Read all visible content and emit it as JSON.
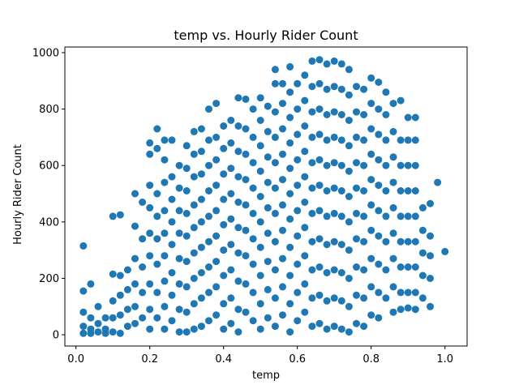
{
  "chart_data": {
    "type": "scatter",
    "title": "temp vs. Hourly Rider Count",
    "xlabel": "temp",
    "ylabel": "Hourly Rider Count",
    "xlim": [
      -0.03,
      1.06
    ],
    "ylim": [
      -40,
      1020
    ],
    "x_ticks": [
      0.0,
      0.2,
      0.4,
      0.6,
      0.8,
      1.0
    ],
    "x_tick_labels": [
      "0.0",
      "0.2",
      "0.4",
      "0.6",
      "0.8",
      "1.0"
    ],
    "y_ticks": [
      0,
      200,
      400,
      600,
      800,
      1000
    ],
    "y_tick_labels": [
      "0",
      "200",
      "400",
      "600",
      "800",
      "1000"
    ],
    "grid": false,
    "marker_color": "#1f77b4",
    "points_approx_note_free": true,
    "points": [
      [
        0.02,
        315
      ],
      [
        0.02,
        155
      ],
      [
        0.02,
        80
      ],
      [
        0.02,
        30
      ],
      [
        0.02,
        5
      ],
      [
        0.04,
        180
      ],
      [
        0.04,
        60
      ],
      [
        0.04,
        20
      ],
      [
        0.04,
        5
      ],
      [
        0.06,
        100
      ],
      [
        0.06,
        40
      ],
      [
        0.06,
        10
      ],
      [
        0.08,
        60
      ],
      [
        0.08,
        20
      ],
      [
        0.08,
        5
      ],
      [
        0.1,
        420
      ],
      [
        0.1,
        215
      ],
      [
        0.1,
        120
      ],
      [
        0.1,
        60
      ],
      [
        0.1,
        10
      ],
      [
        0.12,
        425
      ],
      [
        0.12,
        210
      ],
      [
        0.12,
        140
      ],
      [
        0.12,
        70
      ],
      [
        0.12,
        5
      ],
      [
        0.14,
        230
      ],
      [
        0.14,
        160
      ],
      [
        0.14,
        90
      ],
      [
        0.14,
        30
      ],
      [
        0.16,
        500
      ],
      [
        0.16,
        385
      ],
      [
        0.16,
        270
      ],
      [
        0.16,
        180
      ],
      [
        0.16,
        100
      ],
      [
        0.16,
        40
      ],
      [
        0.18,
        470
      ],
      [
        0.18,
        340
      ],
      [
        0.18,
        240
      ],
      [
        0.18,
        150
      ],
      [
        0.18,
        60
      ],
      [
        0.2,
        680
      ],
      [
        0.2,
        640
      ],
      [
        0.2,
        530
      ],
      [
        0.2,
        450
      ],
      [
        0.2,
        360
      ],
      [
        0.2,
        280
      ],
      [
        0.2,
        180
      ],
      [
        0.2,
        90
      ],
      [
        0.2,
        20
      ],
      [
        0.22,
        730
      ],
      [
        0.22,
        660
      ],
      [
        0.22,
        500
      ],
      [
        0.22,
        420
      ],
      [
        0.22,
        340
      ],
      [
        0.22,
        250
      ],
      [
        0.22,
        150
      ],
      [
        0.22,
        60
      ],
      [
        0.24,
        690
      ],
      [
        0.24,
        620
      ],
      [
        0.24,
        540
      ],
      [
        0.24,
        440
      ],
      [
        0.24,
        360
      ],
      [
        0.24,
        280
      ],
      [
        0.24,
        190
      ],
      [
        0.24,
        100
      ],
      [
        0.24,
        20
      ],
      [
        0.26,
        690
      ],
      [
        0.26,
        560
      ],
      [
        0.26,
        480
      ],
      [
        0.26,
        400
      ],
      [
        0.26,
        320
      ],
      [
        0.26,
        220
      ],
      [
        0.26,
        140
      ],
      [
        0.26,
        50
      ],
      [
        0.28,
        600
      ],
      [
        0.28,
        520
      ],
      [
        0.28,
        440
      ],
      [
        0.28,
        360
      ],
      [
        0.28,
        270
      ],
      [
        0.28,
        180
      ],
      [
        0.28,
        90
      ],
      [
        0.28,
        10
      ],
      [
        0.3,
        670
      ],
      [
        0.3,
        590
      ],
      [
        0.3,
        510
      ],
      [
        0.3,
        430
      ],
      [
        0.3,
        350
      ],
      [
        0.3,
        260
      ],
      [
        0.3,
        170
      ],
      [
        0.3,
        80
      ],
      [
        0.3,
        10
      ],
      [
        0.32,
        720
      ],
      [
        0.32,
        640
      ],
      [
        0.32,
        560
      ],
      [
        0.32,
        460
      ],
      [
        0.32,
        380
      ],
      [
        0.32,
        290
      ],
      [
        0.32,
        200
      ],
      [
        0.32,
        110
      ],
      [
        0.32,
        20
      ],
      [
        0.34,
        730
      ],
      [
        0.34,
        650
      ],
      [
        0.34,
        570
      ],
      [
        0.34,
        480
      ],
      [
        0.34,
        400
      ],
      [
        0.34,
        310
      ],
      [
        0.34,
        220
      ],
      [
        0.34,
        130
      ],
      [
        0.34,
        30
      ],
      [
        0.36,
        800
      ],
      [
        0.36,
        690
      ],
      [
        0.36,
        600
      ],
      [
        0.36,
        510
      ],
      [
        0.36,
        420
      ],
      [
        0.36,
        330
      ],
      [
        0.36,
        240
      ],
      [
        0.36,
        150
      ],
      [
        0.36,
        50
      ],
      [
        0.38,
        820
      ],
      [
        0.38,
        700
      ],
      [
        0.38,
        620
      ],
      [
        0.38,
        530
      ],
      [
        0.38,
        440
      ],
      [
        0.38,
        350
      ],
      [
        0.38,
        260
      ],
      [
        0.38,
        170
      ],
      [
        0.38,
        70
      ],
      [
        0.4,
        740
      ],
      [
        0.4,
        660
      ],
      [
        0.4,
        570
      ],
      [
        0.4,
        480
      ],
      [
        0.4,
        390
      ],
      [
        0.4,
        300
      ],
      [
        0.4,
        210
      ],
      [
        0.4,
        110
      ],
      [
        0.4,
        20
      ],
      [
        0.42,
        760
      ],
      [
        0.42,
        680
      ],
      [
        0.42,
        590
      ],
      [
        0.42,
        500
      ],
      [
        0.42,
        410
      ],
      [
        0.42,
        320
      ],
      [
        0.42,
        230
      ],
      [
        0.42,
        130
      ],
      [
        0.42,
        40
      ],
      [
        0.44,
        840
      ],
      [
        0.44,
        740
      ],
      [
        0.44,
        650
      ],
      [
        0.44,
        560
      ],
      [
        0.44,
        470
      ],
      [
        0.44,
        380
      ],
      [
        0.44,
        290
      ],
      [
        0.44,
        190
      ],
      [
        0.44,
        90
      ],
      [
        0.44,
        10
      ],
      [
        0.46,
        835
      ],
      [
        0.46,
        730
      ],
      [
        0.46,
        640
      ],
      [
        0.46,
        550
      ],
      [
        0.46,
        460
      ],
      [
        0.46,
        370
      ],
      [
        0.46,
        280
      ],
      [
        0.46,
        180
      ],
      [
        0.46,
        80
      ],
      [
        0.48,
        800
      ],
      [
        0.48,
        700
      ],
      [
        0.48,
        610
      ],
      [
        0.48,
        520
      ],
      [
        0.48,
        430
      ],
      [
        0.48,
        340
      ],
      [
        0.48,
        250
      ],
      [
        0.48,
        150
      ],
      [
        0.48,
        50
      ],
      [
        0.5,
        840
      ],
      [
        0.5,
        760
      ],
      [
        0.5,
        670
      ],
      [
        0.5,
        580
      ],
      [
        0.5,
        490
      ],
      [
        0.5,
        400
      ],
      [
        0.5,
        310
      ],
      [
        0.5,
        210
      ],
      [
        0.5,
        110
      ],
      [
        0.5,
        20
      ],
      [
        0.52,
        810
      ],
      [
        0.52,
        720
      ],
      [
        0.52,
        630
      ],
      [
        0.52,
        540
      ],
      [
        0.52,
        450
      ],
      [
        0.52,
        360
      ],
      [
        0.52,
        260
      ],
      [
        0.52,
        160
      ],
      [
        0.52,
        60
      ],
      [
        0.54,
        940
      ],
      [
        0.54,
        890
      ],
      [
        0.54,
        790
      ],
      [
        0.54,
        700
      ],
      [
        0.54,
        610
      ],
      [
        0.54,
        520
      ],
      [
        0.54,
        430
      ],
      [
        0.54,
        330
      ],
      [
        0.54,
        230
      ],
      [
        0.54,
        130
      ],
      [
        0.54,
        30
      ],
      [
        0.56,
        890
      ],
      [
        0.56,
        820
      ],
      [
        0.56,
        730
      ],
      [
        0.56,
        640
      ],
      [
        0.56,
        550
      ],
      [
        0.56,
        460
      ],
      [
        0.56,
        370
      ],
      [
        0.56,
        270
      ],
      [
        0.56,
        170
      ],
      [
        0.56,
        70
      ],
      [
        0.58,
        950
      ],
      [
        0.58,
        860
      ],
      [
        0.58,
        770
      ],
      [
        0.58,
        680
      ],
      [
        0.58,
        590
      ],
      [
        0.58,
        500
      ],
      [
        0.58,
        410
      ],
      [
        0.58,
        310
      ],
      [
        0.58,
        210
      ],
      [
        0.58,
        110
      ],
      [
        0.58,
        10
      ],
      [
        0.6,
        890
      ],
      [
        0.6,
        800
      ],
      [
        0.6,
        710
      ],
      [
        0.6,
        620
      ],
      [
        0.6,
        530
      ],
      [
        0.6,
        440
      ],
      [
        0.6,
        350
      ],
      [
        0.6,
        250
      ],
      [
        0.6,
        150
      ],
      [
        0.6,
        50
      ],
      [
        0.62,
        920
      ],
      [
        0.62,
        830
      ],
      [
        0.62,
        740
      ],
      [
        0.62,
        650
      ],
      [
        0.62,
        560
      ],
      [
        0.62,
        470
      ],
      [
        0.62,
        380
      ],
      [
        0.62,
        280
      ],
      [
        0.62,
        180
      ],
      [
        0.62,
        80
      ],
      [
        0.64,
        970
      ],
      [
        0.64,
        880
      ],
      [
        0.64,
        790
      ],
      [
        0.64,
        700
      ],
      [
        0.64,
        610
      ],
      [
        0.64,
        520
      ],
      [
        0.64,
        430
      ],
      [
        0.64,
        330
      ],
      [
        0.64,
        230
      ],
      [
        0.64,
        130
      ],
      [
        0.64,
        30
      ],
      [
        0.66,
        975
      ],
      [
        0.66,
        890
      ],
      [
        0.66,
        800
      ],
      [
        0.66,
        710
      ],
      [
        0.66,
        620
      ],
      [
        0.66,
        530
      ],
      [
        0.66,
        440
      ],
      [
        0.66,
        340
      ],
      [
        0.66,
        240
      ],
      [
        0.66,
        140
      ],
      [
        0.66,
        40
      ],
      [
        0.68,
        960
      ],
      [
        0.68,
        870
      ],
      [
        0.68,
        780
      ],
      [
        0.68,
        690
      ],
      [
        0.68,
        600
      ],
      [
        0.68,
        510
      ],
      [
        0.68,
        420
      ],
      [
        0.68,
        320
      ],
      [
        0.68,
        220
      ],
      [
        0.68,
        120
      ],
      [
        0.68,
        20
      ],
      [
        0.7,
        970
      ],
      [
        0.7,
        880
      ],
      [
        0.7,
        790
      ],
      [
        0.7,
        700
      ],
      [
        0.7,
        610
      ],
      [
        0.7,
        520
      ],
      [
        0.7,
        430
      ],
      [
        0.7,
        330
      ],
      [
        0.7,
        230
      ],
      [
        0.7,
        130
      ],
      [
        0.7,
        30
      ],
      [
        0.72,
        960
      ],
      [
        0.72,
        870
      ],
      [
        0.72,
        780
      ],
      [
        0.72,
        690
      ],
      [
        0.72,
        600
      ],
      [
        0.72,
        510
      ],
      [
        0.72,
        420
      ],
      [
        0.72,
        320
      ],
      [
        0.72,
        220
      ],
      [
        0.72,
        120
      ],
      [
        0.72,
        20
      ],
      [
        0.74,
        940
      ],
      [
        0.74,
        850
      ],
      [
        0.74,
        760
      ],
      [
        0.74,
        670
      ],
      [
        0.74,
        580
      ],
      [
        0.74,
        490
      ],
      [
        0.74,
        400
      ],
      [
        0.74,
        300
      ],
      [
        0.74,
        200
      ],
      [
        0.74,
        100
      ],
      [
        0.74,
        10
      ],
      [
        0.76,
        880
      ],
      [
        0.76,
        790
      ],
      [
        0.76,
        700
      ],
      [
        0.76,
        610
      ],
      [
        0.76,
        520
      ],
      [
        0.76,
        430
      ],
      [
        0.76,
        340
      ],
      [
        0.76,
        240
      ],
      [
        0.76,
        140
      ],
      [
        0.76,
        40
      ],
      [
        0.78,
        870
      ],
      [
        0.78,
        780
      ],
      [
        0.78,
        690
      ],
      [
        0.78,
        600
      ],
      [
        0.78,
        510
      ],
      [
        0.78,
        420
      ],
      [
        0.78,
        330
      ],
      [
        0.78,
        230
      ],
      [
        0.78,
        130
      ],
      [
        0.78,
        30
      ],
      [
        0.8,
        910
      ],
      [
        0.8,
        820
      ],
      [
        0.8,
        730
      ],
      [
        0.8,
        640
      ],
      [
        0.8,
        550
      ],
      [
        0.8,
        460
      ],
      [
        0.8,
        370
      ],
      [
        0.8,
        270
      ],
      [
        0.8,
        170
      ],
      [
        0.8,
        70
      ],
      [
        0.82,
        895
      ],
      [
        0.82,
        800
      ],
      [
        0.82,
        710
      ],
      [
        0.82,
        620
      ],
      [
        0.82,
        530
      ],
      [
        0.82,
        440
      ],
      [
        0.82,
        350
      ],
      [
        0.82,
        250
      ],
      [
        0.82,
        150
      ],
      [
        0.82,
        60
      ],
      [
        0.84,
        860
      ],
      [
        0.84,
        780
      ],
      [
        0.84,
        690
      ],
      [
        0.84,
        600
      ],
      [
        0.84,
        510
      ],
      [
        0.84,
        420
      ],
      [
        0.84,
        330
      ],
      [
        0.84,
        230
      ],
      [
        0.84,
        130
      ],
      [
        0.86,
        820
      ],
      [
        0.86,
        720
      ],
      [
        0.86,
        630
      ],
      [
        0.86,
        540
      ],
      [
        0.86,
        450
      ],
      [
        0.86,
        360
      ],
      [
        0.86,
        270
      ],
      [
        0.86,
        170
      ],
      [
        0.86,
        80
      ],
      [
        0.88,
        830
      ],
      [
        0.88,
        690
      ],
      [
        0.88,
        600
      ],
      [
        0.88,
        510
      ],
      [
        0.88,
        420
      ],
      [
        0.88,
        330
      ],
      [
        0.88,
        240
      ],
      [
        0.88,
        150
      ],
      [
        0.88,
        90
      ],
      [
        0.9,
        770
      ],
      [
        0.9,
        690
      ],
      [
        0.9,
        600
      ],
      [
        0.9,
        510
      ],
      [
        0.9,
        420
      ],
      [
        0.9,
        330
      ],
      [
        0.9,
        240
      ],
      [
        0.9,
        150
      ],
      [
        0.9,
        95
      ],
      [
        0.92,
        770
      ],
      [
        0.92,
        690
      ],
      [
        0.92,
        600
      ],
      [
        0.92,
        510
      ],
      [
        0.92,
        420
      ],
      [
        0.92,
        330
      ],
      [
        0.92,
        240
      ],
      [
        0.92,
        150
      ],
      [
        0.92,
        90
      ],
      [
        0.94,
        450
      ],
      [
        0.94,
        370
      ],
      [
        0.94,
        290
      ],
      [
        0.94,
        210
      ],
      [
        0.94,
        130
      ],
      [
        0.96,
        465
      ],
      [
        0.96,
        350
      ],
      [
        0.96,
        280
      ],
      [
        0.96,
        200
      ],
      [
        0.96,
        100
      ],
      [
        0.98,
        540
      ],
      [
        1.0,
        295
      ]
    ]
  }
}
